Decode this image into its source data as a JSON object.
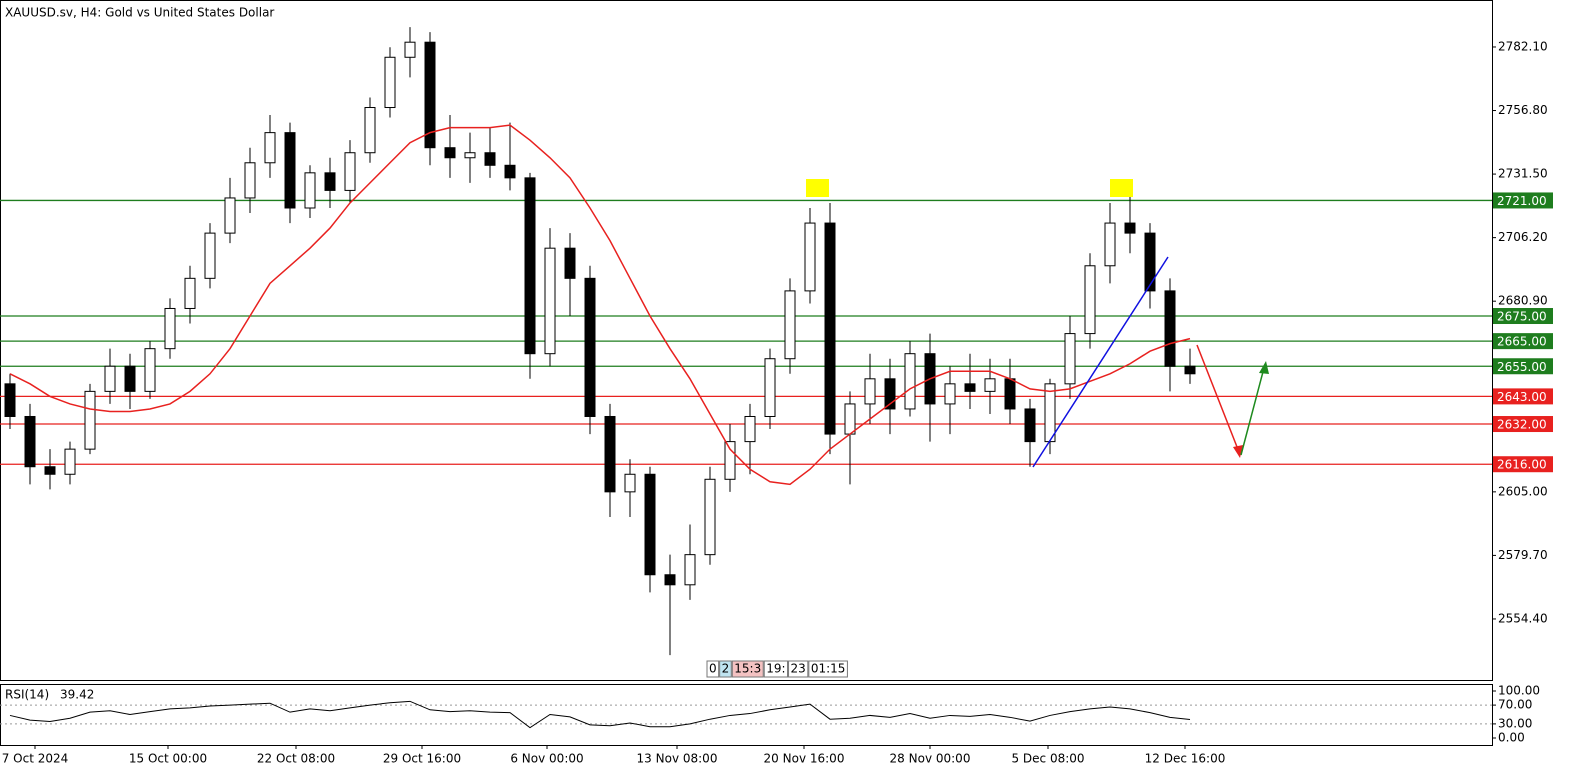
{
  "chart_data": [
    {
      "type": "candlestick",
      "title": "XAUUSD.sv, H4:  Gold vs United States Dollar",
      "xlim": [
        -0.5,
        74.1
      ],
      "ylim": [
        2530.1,
        2800.8
      ],
      "yticks": [
        {
          "value": 2782.1,
          "label": "2782.10"
        },
        {
          "value": 2756.8,
          "label": "2756.80"
        },
        {
          "value": 2731.5,
          "label": "2731.50"
        },
        {
          "value": 2706.2,
          "label": "2706.20"
        },
        {
          "value": 2680.9,
          "label": "2680.90"
        },
        {
          "value": 2605,
          "label": "2605.00"
        },
        {
          "value": 2579.7,
          "label": "2579.70"
        },
        {
          "value": 2554.4,
          "label": "2554.40"
        }
      ],
      "xticks": [
        {
          "value": 1.25,
          "label": "7 Oct 2024"
        },
        {
          "value": 7.9,
          "label": "15 Oct 00:00"
        },
        {
          "value": 14.3,
          "label": "22 Oct 08:00"
        },
        {
          "value": 20.6,
          "label": "29 Oct 16:00"
        },
        {
          "value": 26.85,
          "label": "6 Nov 00:00"
        },
        {
          "value": 33.35,
          "label": "13 Nov 08:00"
        },
        {
          "value": 39.7,
          "label": "20 Nov 16:00"
        },
        {
          "value": 46,
          "label": "28 Nov 00:00"
        },
        {
          "value": 51.9,
          "label": "5 Dec 08:00"
        },
        {
          "value": 58.75,
          "label": "12 Dec 16:00"
        }
      ],
      "open": [
        2648,
        2635,
        2615,
        2612,
        2622,
        2645,
        2655,
        2645,
        2662,
        2678,
        2690,
        2708,
        2722,
        2736,
        2748,
        2718,
        2732,
        2725,
        2740,
        2758,
        2778,
        2784,
        2742,
        2738,
        2740,
        2735,
        2730,
        2660,
        2702,
        2690,
        2635,
        2605,
        2612,
        2572,
        2568,
        2580,
        2610,
        2625,
        2635,
        2658,
        2685,
        2712,
        2628,
        2640,
        2650,
        2638,
        2660,
        2640,
        2648,
        2645,
        2650,
        2638,
        2625,
        2648,
        2668,
        2695,
        2712,
        2708,
        2685,
        2655
      ],
      "high": [
        2652,
        2640,
        2622,
        2625,
        2648,
        2662,
        2660,
        2665,
        2682,
        2695,
        2712,
        2730,
        2742,
        2755,
        2752,
        2735,
        2738,
        2745,
        2762,
        2782,
        2790,
        2788,
        2755,
        2748,
        2750,
        2752,
        2732,
        2710,
        2708,
        2695,
        2640,
        2618,
        2615,
        2580,
        2592,
        2615,
        2632,
        2640,
        2662,
        2690,
        2718,
        2720,
        2645,
        2660,
        2658,
        2665,
        2668,
        2655,
        2660,
        2658,
        2658,
        2642,
        2650,
        2675,
        2700,
        2720,
        2726,
        2712,
        2690,
        2662
      ],
      "low": [
        2630,
        2608,
        2606,
        2608,
        2620,
        2640,
        2638,
        2642,
        2658,
        2672,
        2686,
        2704,
        2716,
        2730,
        2712,
        2714,
        2718,
        2720,
        2736,
        2754,
        2770,
        2735,
        2730,
        2728,
        2730,
        2725,
        2650,
        2655,
        2675,
        2628,
        2595,
        2595,
        2565,
        2540,
        2562,
        2576,
        2605,
        2612,
        2630,
        2652,
        2680,
        2620,
        2608,
        2632,
        2628,
        2635,
        2625,
        2628,
        2638,
        2636,
        2632,
        2615,
        2620,
        2642,
        2662,
        2688,
        2700,
        2678,
        2645,
        2648
      ],
      "close": [
        2635,
        2615,
        2612,
        2622,
        2645,
        2655,
        2645,
        2662,
        2678,
        2690,
        2708,
        2722,
        2736,
        2748,
        2718,
        2732,
        2725,
        2740,
        2758,
        2778,
        2784,
        2742,
        2738,
        2740,
        2735,
        2730,
        2660,
        2702,
        2690,
        2635,
        2605,
        2612,
        2572,
        2568,
        2580,
        2610,
        2625,
        2635,
        2658,
        2685,
        2712,
        2628,
        2640,
        2650,
        2638,
        2660,
        2640,
        2648,
        2645,
        2650,
        2638,
        2625,
        2648,
        2668,
        2695,
        2712,
        2708,
        2685,
        2655,
        2652
      ],
      "moving_average": {
        "color": "#e8211f",
        "values": [
          2652,
          2648,
          2643,
          2640,
          2638,
          2637,
          2637,
          2638,
          2640,
          2645,
          2652,
          2662,
          2675,
          2688,
          2695,
          2702,
          2710,
          2720,
          2728,
          2736,
          2744,
          2748,
          2750,
          2750,
          2750,
          2751,
          2745,
          2738,
          2730,
          2718,
          2705,
          2690,
          2675,
          2662,
          2650,
          2636,
          2622,
          2614,
          2609,
          2608,
          2614,
          2622,
          2628,
          2634,
          2640,
          2646,
          2650,
          2653,
          2653,
          2653,
          2650,
          2646,
          2645,
          2646,
          2649,
          2652,
          2656,
          2661,
          2664,
          2666
        ]
      },
      "levels": [
        {
          "value": 2721,
          "label": "2721.00",
          "color": "#1e7d1e"
        },
        {
          "value": 2675,
          "label": "2675.00",
          "color": "#1e7d1e"
        },
        {
          "value": 2665,
          "label": "2665.00",
          "color": "#1e7d1e"
        },
        {
          "value": 2655,
          "label": "2655.00",
          "color": "#1e7d1e"
        },
        {
          "value": 2643,
          "label": "2643.00",
          "color": "#e8211f"
        },
        {
          "value": 2632,
          "label": "2632.00",
          "color": "#e8211f"
        },
        {
          "value": 2616,
          "label": "2616.00",
          "color": "#e8211f"
        }
      ],
      "timebar": [
        "0",
        "2",
        "15:3",
        "19:",
        "23",
        "01:15"
      ]
    },
    {
      "type": "line",
      "name": "RSI(14)",
      "value": 39.42,
      "color": "#000000",
      "ylim": [
        -14.9,
        114.9
      ],
      "yticks": [
        {
          "value": 100,
          "label": "100.00"
        },
        {
          "value": 70,
          "label": "70.00"
        },
        {
          "value": 30,
          "label": "30.00"
        },
        {
          "value": 0,
          "label": "0.00"
        }
      ],
      "levels": [
        70,
        30
      ],
      "values": [
        48,
        38,
        35,
        42,
        55,
        58,
        50,
        56,
        62,
        64,
        68,
        70,
        72,
        74,
        55,
        62,
        58,
        64,
        70,
        75,
        78,
        60,
        56,
        58,
        55,
        54,
        22,
        50,
        45,
        28,
        26,
        32,
        24,
        24,
        30,
        40,
        48,
        52,
        60,
        66,
        72,
        40,
        42,
        48,
        44,
        52,
        42,
        48,
        46,
        50,
        44,
        36,
        48,
        56,
        62,
        66,
        62,
        54,
        44,
        39.42
      ]
    }
  ]
}
